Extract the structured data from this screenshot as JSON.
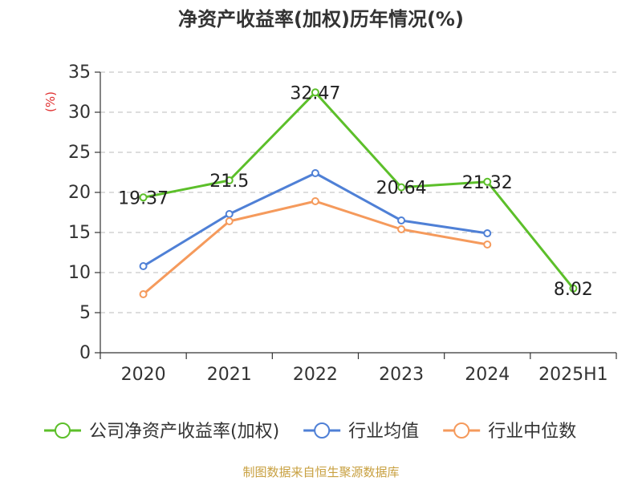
{
  "chart_data": {
    "type": "line",
    "title": "净资产收益率(加权)历年情况(%)",
    "ylabel": "(%)",
    "categories": [
      "2020",
      "2021",
      "2022",
      "2023",
      "2024",
      "2025H1"
    ],
    "ylim": [
      0,
      35
    ],
    "yticks": [
      0,
      5,
      10,
      15,
      20,
      25,
      30,
      35
    ],
    "grid": true,
    "legend_position": "bottom",
    "series": [
      {
        "name": "公司净资产收益率(加权)",
        "color": "#5cbf2a",
        "values": [
          19.37,
          21.5,
          32.47,
          20.64,
          21.32,
          8.02
        ],
        "labels": [
          "19.37",
          "21.5",
          "32.47",
          "20.64",
          "21.32",
          "8.02"
        ]
      },
      {
        "name": "行业均值",
        "color": "#4f80d6",
        "values": [
          10.8,
          17.3,
          22.4,
          16.5,
          14.9,
          null
        ]
      },
      {
        "name": "行业中位数",
        "color": "#f59a5c",
        "values": [
          7.3,
          16.4,
          18.9,
          15.4,
          13.5,
          null
        ]
      }
    ],
    "source": "制图数据来自恒生聚源数据库"
  }
}
